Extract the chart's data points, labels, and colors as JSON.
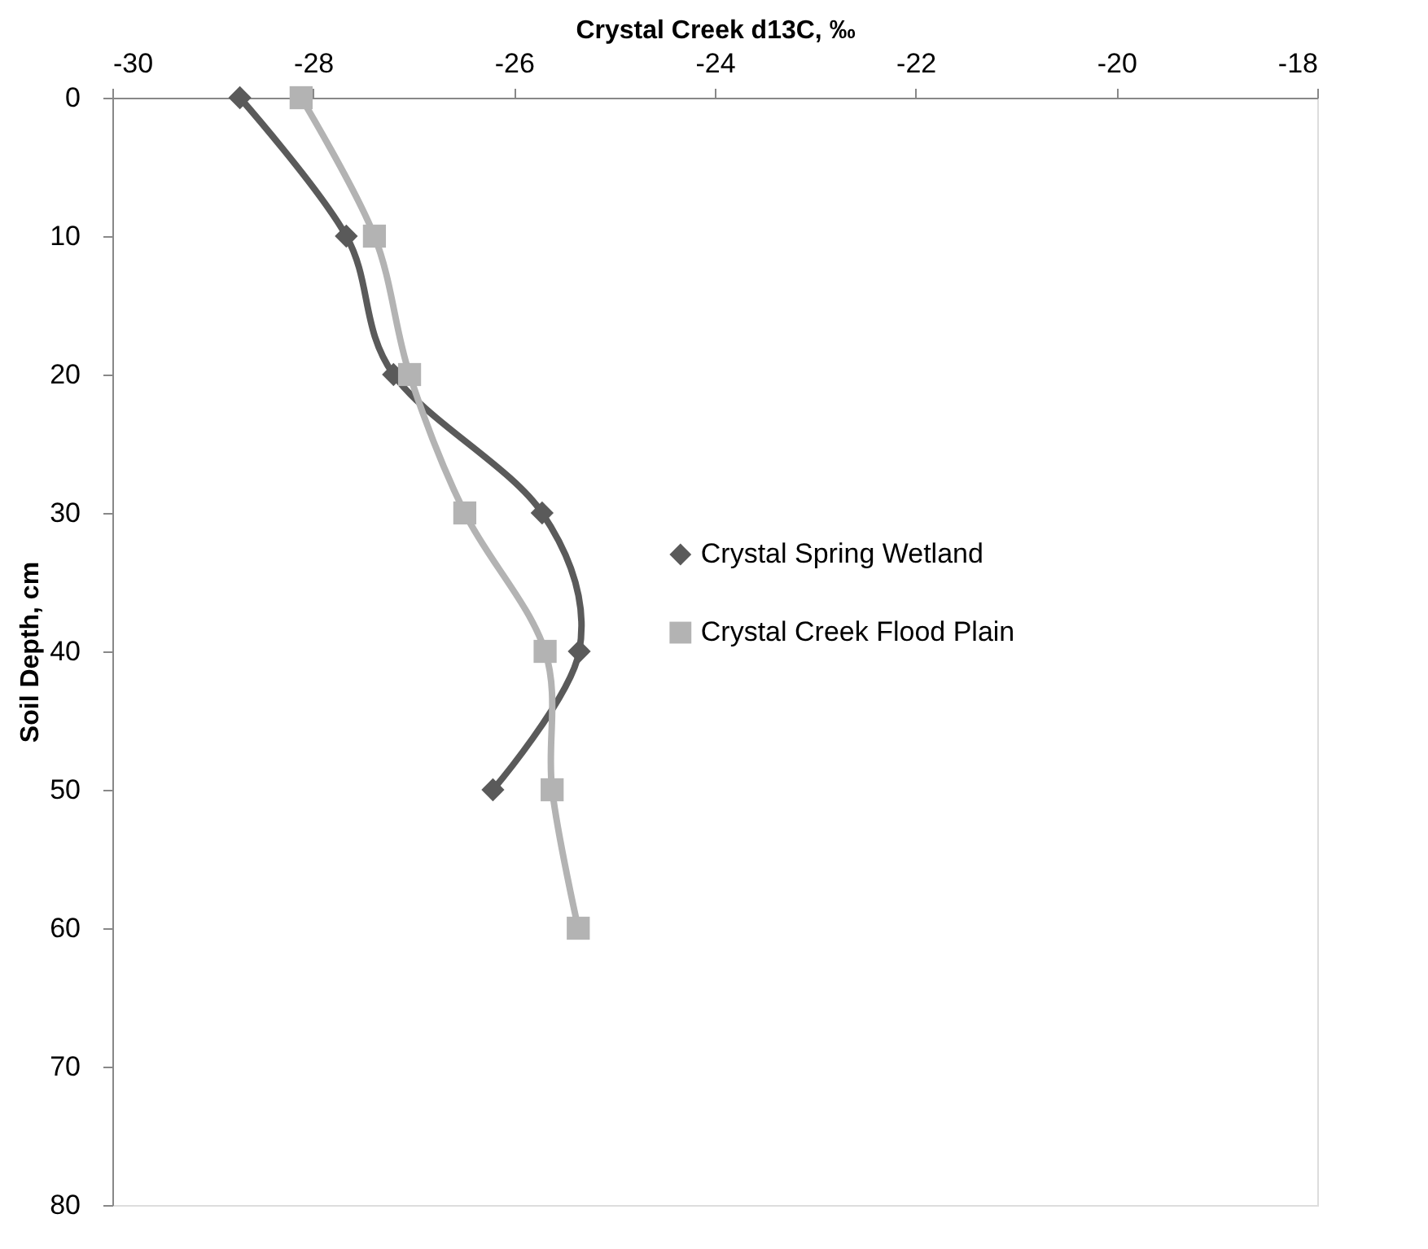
{
  "chart_data": {
    "type": "line",
    "xlabel": "Crystal Creek d13C, ‰",
    "ylabel": "Soil Depth, cm",
    "xlim": [
      -30,
      -18
    ],
    "xticks": [
      -30,
      -28,
      -26,
      -24,
      -22,
      -20,
      -18
    ],
    "ylim": [
      80,
      0
    ],
    "yticks": [
      0,
      10,
      20,
      30,
      40,
      50,
      60,
      70,
      80
    ],
    "grid": false,
    "legend": "right",
    "line_style": "solid",
    "series": [
      {
        "name": "Crystal Spring Wetland",
        "color": "#5a5a5a",
        "marker": "diamond",
        "x": [
          -28.73,
          -27.67,
          -27.2,
          -25.72,
          -25.35,
          -26.21
        ],
        "values": [
          0,
          10,
          20,
          30,
          40,
          50
        ]
      },
      {
        "name": "Crystal Creek Flood Plain",
        "color": "#b3b3b3",
        "marker": "square",
        "x": [
          -28.12,
          -27.39,
          -27.04,
          -26.49,
          -25.69,
          -25.62,
          -25.36
        ],
        "values": [
          0,
          10,
          20,
          30,
          40,
          50,
          60
        ]
      }
    ]
  }
}
